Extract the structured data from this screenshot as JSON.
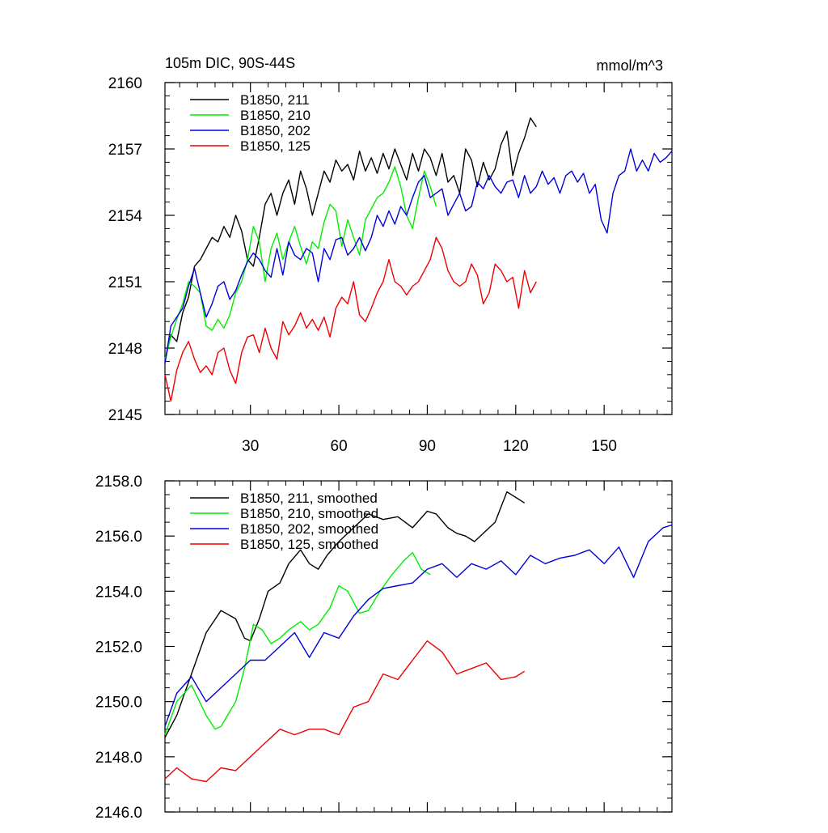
{
  "chart_data": [
    {
      "type": "line",
      "title_left": "105m DIC, 90S-44S",
      "title_right": "mmol/m^3",
      "xlim": [
        1,
        173
      ],
      "ylim": [
        2145,
        2160
      ],
      "xticks": [
        30,
        60,
        90,
        120,
        150
      ],
      "yticks": [
        2145,
        2148,
        2151,
        2154,
        2157,
        2160
      ],
      "ytick_labels": [
        "2145",
        "2148",
        "2151",
        "2154",
        "2157",
        "2160"
      ],
      "grid": false,
      "legend_position": "top-left",
      "series": [
        {
          "name": "B1850, 211",
          "color": "#000000",
          "x": [
            1,
            3,
            5,
            7,
            9,
            11,
            13,
            15,
            17,
            19,
            21,
            23,
            25,
            27,
            29,
            31,
            33,
            35,
            37,
            39,
            41,
            43,
            45,
            47,
            49,
            51,
            53,
            55,
            57,
            59,
            61,
            63,
            65,
            67,
            69,
            71,
            73,
            75,
            77,
            79,
            81,
            83,
            85,
            87,
            89,
            91,
            93,
            95,
            97,
            99,
            101,
            103,
            105,
            107,
            109,
            111,
            113,
            115,
            117,
            119,
            121,
            123,
            125,
            127
          ],
          "y": [
            2147.4,
            2148.6,
            2148.3,
            2149.6,
            2150.3,
            2151.7,
            2152.0,
            2152.5,
            2153.0,
            2152.8,
            2153.5,
            2153.0,
            2154.0,
            2153.3,
            2152.0,
            2151.7,
            2153.0,
            2154.5,
            2155.0,
            2154.0,
            2155.0,
            2155.6,
            2154.5,
            2156.0,
            2155.2,
            2154.0,
            2155.0,
            2156.0,
            2155.5,
            2156.5,
            2156.0,
            2156.3,
            2155.6,
            2156.9,
            2156.0,
            2156.6,
            2155.9,
            2156.8,
            2156.1,
            2157.0,
            2156.3,
            2155.6,
            2156.8,
            2156.0,
            2157.0,
            2156.6,
            2155.8,
            2156.8,
            2155.5,
            2155.8,
            2155.0,
            2157.0,
            2156.5,
            2155.3,
            2156.4,
            2155.6,
            2156.1,
            2157.2,
            2157.8,
            2155.8,
            2156.8,
            2157.5,
            2158.4,
            2158.0
          ]
        },
        {
          "name": "B1850, 210",
          "color": "#00ee00",
          "x": [
            1,
            3,
            5,
            7,
            9,
            11,
            13,
            15,
            17,
            19,
            21,
            23,
            25,
            27,
            29,
            31,
            33,
            35,
            37,
            39,
            41,
            43,
            45,
            47,
            49,
            51,
            53,
            55,
            57,
            59,
            61,
            63,
            65,
            67,
            69,
            71,
            73,
            75,
            77,
            79,
            81,
            83,
            85,
            87,
            89,
            91,
            93
          ],
          "y": [
            2147.5,
            2148.5,
            2149.3,
            2150.0,
            2151.0,
            2150.8,
            2150.5,
            2149.0,
            2148.8,
            2149.3,
            2148.9,
            2149.5,
            2150.5,
            2151.0,
            2152.0,
            2153.5,
            2152.8,
            2151.0,
            2152.5,
            2153.2,
            2152.0,
            2152.8,
            2153.5,
            2152.6,
            2151.8,
            2152.8,
            2152.5,
            2153.7,
            2154.5,
            2154.2,
            2152.6,
            2153.8,
            2153.0,
            2152.2,
            2153.8,
            2154.3,
            2154.8,
            2155.0,
            2155.5,
            2156.2,
            2155.3,
            2154.0,
            2153.4,
            2154.8,
            2156.0,
            2155.3,
            2154.4
          ]
        },
        {
          "name": "B1850, 202",
          "color": "#0000dd",
          "x": [
            1,
            3,
            5,
            7,
            9,
            11,
            13,
            15,
            17,
            19,
            21,
            23,
            25,
            27,
            29,
            31,
            33,
            35,
            37,
            39,
            41,
            43,
            45,
            47,
            49,
            51,
            53,
            55,
            57,
            59,
            61,
            63,
            65,
            67,
            69,
            71,
            73,
            75,
            77,
            79,
            81,
            83,
            85,
            87,
            89,
            91,
            93,
            95,
            97,
            99,
            101,
            103,
            105,
            107,
            109,
            111,
            113,
            115,
            117,
            119,
            121,
            123,
            125,
            127,
            129,
            131,
            133,
            135,
            137,
            139,
            141,
            143,
            145,
            147,
            149,
            151,
            153,
            155,
            157,
            159,
            161,
            163,
            165,
            167,
            169,
            171,
            173
          ],
          "y": [
            2147.3,
            2149.0,
            2149.4,
            2149.8,
            2150.8,
            2151.6,
            2150.5,
            2149.4,
            2150.0,
            2150.8,
            2151.0,
            2150.2,
            2150.6,
            2151.3,
            2151.9,
            2152.3,
            2152.0,
            2151.5,
            2151.2,
            2152.5,
            2151.3,
            2152.8,
            2152.2,
            2152.0,
            2152.5,
            2152.3,
            2151.0,
            2152.5,
            2152.0,
            2152.9,
            2153.0,
            2152.2,
            2152.5,
            2153.0,
            2152.4,
            2153.0,
            2154.0,
            2153.5,
            2154.2,
            2153.6,
            2154.4,
            2154.0,
            2154.8,
            2155.5,
            2155.8,
            2154.8,
            2155.0,
            2155.2,
            2154.0,
            2154.5,
            2155.0,
            2154.2,
            2154.4,
            2155.5,
            2155.2,
            2155.8,
            2155.3,
            2155.0,
            2155.5,
            2155.6,
            2154.8,
            2155.8,
            2155.0,
            2155.3,
            2156.0,
            2155.4,
            2155.7,
            2155.0,
            2155.8,
            2156.0,
            2155.5,
            2155.9,
            2155.0,
            2155.4,
            2153.8,
            2153.2,
            2155.0,
            2155.8,
            2156.0,
            2157.0,
            2156.0,
            2156.5,
            2156.0,
            2156.8,
            2156.4,
            2156.6,
            2156.9
          ]
        },
        {
          "name": "B1850, 125",
          "color": "#ee0000",
          "x": [
            1,
            3,
            5,
            7,
            9,
            11,
            13,
            15,
            17,
            19,
            21,
            23,
            25,
            27,
            29,
            31,
            33,
            35,
            37,
            39,
            41,
            43,
            45,
            47,
            49,
            51,
            53,
            55,
            57,
            59,
            61,
            63,
            65,
            67,
            69,
            71,
            73,
            75,
            77,
            79,
            81,
            83,
            85,
            87,
            89,
            91,
            93,
            95,
            97,
            99,
            101,
            103,
            105,
            107,
            109,
            111,
            113,
            115,
            117,
            119,
            121,
            123,
            125,
            127
          ],
          "y": [
            2146.8,
            2145.6,
            2147.0,
            2147.8,
            2148.3,
            2147.5,
            2146.9,
            2147.2,
            2146.8,
            2147.8,
            2148.0,
            2147.0,
            2146.4,
            2147.8,
            2148.5,
            2148.6,
            2147.8,
            2148.9,
            2148.0,
            2147.5,
            2149.2,
            2148.6,
            2149.0,
            2149.6,
            2148.9,
            2149.3,
            2148.8,
            2149.4,
            2148.5,
            2149.8,
            2150.3,
            2150.0,
            2151.0,
            2149.5,
            2149.2,
            2149.8,
            2150.5,
            2151.0,
            2152.0,
            2151.0,
            2150.8,
            2150.4,
            2150.8,
            2151.0,
            2151.5,
            2152.0,
            2153.0,
            2152.5,
            2151.5,
            2151.0,
            2150.8,
            2151.0,
            2151.8,
            2151.3,
            2150.0,
            2150.5,
            2151.8,
            2151.5,
            2151.0,
            2151.2,
            2149.8,
            2151.5,
            2150.5,
            2151.0
          ]
        }
      ]
    },
    {
      "type": "line",
      "xlim": [
        1,
        173
      ],
      "ylim": [
        2146,
        2158
      ],
      "xticks": [
        30,
        60,
        90,
        120,
        150
      ],
      "yticks": [
        2146,
        2148,
        2150,
        2152,
        2154,
        2156,
        2158
      ],
      "ytick_labels": [
        "2146.0",
        "2148.0",
        "2150.0",
        "2152.0",
        "2154.0",
        "2156.0",
        "2158.0"
      ],
      "grid": false,
      "legend_position": "top-left",
      "series": [
        {
          "name": "B1850, 211, smoothed",
          "color": "#000000",
          "x": [
            1,
            5,
            10,
            15,
            20,
            25,
            28,
            30,
            33,
            36,
            40,
            43,
            47,
            50,
            53,
            56,
            60,
            65,
            70,
            75,
            80,
            85,
            90,
            93,
            97,
            100,
            103,
            106,
            110,
            113,
            117,
            120,
            123
          ],
          "y": [
            2148.7,
            2149.5,
            2151.0,
            2152.5,
            2153.3,
            2153.0,
            2152.3,
            2152.2,
            2153.0,
            2154.0,
            2154.3,
            2155.0,
            2155.5,
            2155.0,
            2154.8,
            2155.3,
            2155.8,
            2156.3,
            2156.8,
            2156.6,
            2156.7,
            2156.3,
            2156.9,
            2156.8,
            2156.3,
            2156.1,
            2156.0,
            2155.8,
            2156.2,
            2156.5,
            2157.6,
            2157.4,
            2157.2
          ]
        },
        {
          "name": "B1850, 210, smoothed",
          "color": "#00ee00",
          "x": [
            1,
            5,
            10,
            15,
            18,
            20,
            25,
            28,
            31,
            34,
            37,
            40,
            43,
            47,
            50,
            53,
            57,
            60,
            63,
            67,
            70,
            74,
            78,
            82,
            85,
            88,
            91
          ],
          "y": [
            2148.8,
            2150.0,
            2150.6,
            2149.5,
            2149.0,
            2149.1,
            2150.0,
            2151.2,
            2152.8,
            2152.6,
            2152.1,
            2152.3,
            2152.6,
            2152.9,
            2152.6,
            2152.8,
            2153.4,
            2154.2,
            2154.0,
            2153.2,
            2153.3,
            2154.0,
            2154.6,
            2155.1,
            2155.4,
            2154.8,
            2154.6
          ]
        },
        {
          "name": "B1850, 202, smoothed",
          "color": "#0000dd",
          "x": [
            1,
            5,
            10,
            15,
            20,
            25,
            30,
            35,
            40,
            45,
            50,
            55,
            60,
            65,
            70,
            75,
            80,
            85,
            90,
            95,
            100,
            105,
            110,
            115,
            120,
            125,
            130,
            135,
            140,
            145,
            150,
            155,
            160,
            165,
            170,
            173
          ],
          "y": [
            2149.1,
            2150.3,
            2150.9,
            2150.0,
            2150.5,
            2151.0,
            2151.5,
            2151.5,
            2152.0,
            2152.5,
            2151.6,
            2152.5,
            2152.3,
            2153.1,
            2153.7,
            2154.1,
            2154.2,
            2154.3,
            2154.8,
            2155.0,
            2154.5,
            2155.0,
            2154.8,
            2155.1,
            2154.6,
            2155.3,
            2155.0,
            2155.2,
            2155.3,
            2155.5,
            2155.0,
            2155.6,
            2154.5,
            2155.8,
            2156.3,
            2156.4
          ]
        },
        {
          "name": "B1850, 125, smoothed",
          "color": "#ee0000",
          "x": [
            1,
            5,
            10,
            15,
            20,
            25,
            30,
            35,
            40,
            45,
            50,
            55,
            60,
            65,
            70,
            75,
            80,
            85,
            90,
            95,
            100,
            105,
            110,
            115,
            120,
            123
          ],
          "y": [
            2147.2,
            2147.6,
            2147.2,
            2147.1,
            2147.6,
            2147.5,
            2148.0,
            2148.5,
            2149.0,
            2148.8,
            2149.0,
            2149.0,
            2148.8,
            2149.8,
            2150.0,
            2151.0,
            2150.8,
            2151.5,
            2152.2,
            2151.8,
            2151.0,
            2151.2,
            2151.4,
            2150.8,
            2150.9,
            2151.1
          ]
        }
      ]
    }
  ]
}
